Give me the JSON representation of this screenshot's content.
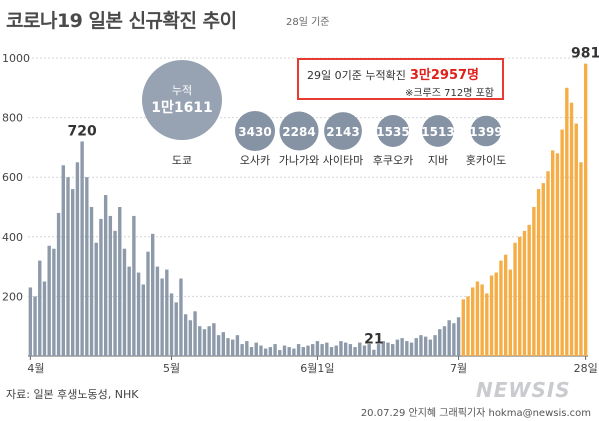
{
  "header": {
    "title": "코로나19 일본 신규확진 추이",
    "subtitle": "28일 기준"
  },
  "callout": {
    "prefix": "29일 0기준 누적확진",
    "total": "3만2957명",
    "note": "※크루즈 712명 포함"
  },
  "bubbles": [
    {
      "label": "도쿄",
      "value": "1만1611",
      "extra": "누적",
      "count": 11611
    },
    {
      "label": "오사카",
      "value": "3430",
      "count": 3430
    },
    {
      "label": "가나가와",
      "value": "2284",
      "count": 2284
    },
    {
      "label": "사이타마",
      "value": "2143",
      "count": 2143
    },
    {
      "label": "후쿠오카",
      "value": "1535",
      "count": 1535
    },
    {
      "label": "지바",
      "value": "1513",
      "count": 1513
    },
    {
      "label": "홋카이도",
      "value": "1399",
      "count": 1399
    }
  ],
  "footer": {
    "source": "자료: 일본 후생노동성, NHK",
    "credit": "20.07.29 안지혜 그래픽기자 hokma@newsis.com",
    "logo": "NEWSIS"
  },
  "colors": {
    "bar_primary": "#8d9aaa",
    "bar_highlight": "#f5ad45",
    "callout_border": "#e83a2f",
    "callout_total": "#e0201b",
    "bubble_tokyo": "#97a3b3",
    "bubble_other": "#8693a5"
  },
  "chart_data": {
    "type": "bar",
    "ylim": [
      0,
      1000
    ],
    "yticks": [
      200,
      400,
      600,
      800,
      1000
    ],
    "x_tick_labels": [
      "4월",
      "5월",
      "6월1일",
      "7월",
      "28일"
    ],
    "x_tick_index": [
      0,
      30,
      61,
      91,
      118
    ],
    "annotations": [
      {
        "index": 11,
        "text": "720"
      },
      {
        "index": 73,
        "text": "21"
      },
      {
        "index": 118,
        "text": "981"
      }
    ],
    "highlight_from_index": 92,
    "series": [
      {
        "values": [
          230,
          200,
          320,
          250,
          370,
          360,
          480,
          640,
          600,
          560,
          650,
          720,
          600,
          500,
          380,
          460,
          540,
          470,
          420,
          500,
          360,
          300,
          470,
          280,
          240,
          350,
          410,
          300,
          260,
          290,
          210,
          180,
          260,
          140,
          120,
          150,
          100,
          90,
          100,
          110,
          70,
          80,
          60,
          55,
          70,
          40,
          50,
          30,
          45,
          35,
          25,
          30,
          40,
          20,
          35,
          30,
          25,
          40,
          30,
          35,
          40,
          50,
          40,
          45,
          30,
          35,
          50,
          45,
          40,
          30,
          45,
          35,
          40,
          21,
          40,
          50,
          45,
          40,
          55,
          60,
          50,
          45,
          60,
          70,
          65,
          55,
          70,
          90,
          100,
          120,
          110,
          130,
          190,
          200,
          230,
          250,
          240,
          210,
          270,
          280,
          320,
          340,
          290,
          380,
          400,
          420,
          440,
          500,
          560,
          580,
          620,
          690,
          680,
          760,
          900,
          850,
          780,
          650,
          981
        ]
      }
    ]
  }
}
